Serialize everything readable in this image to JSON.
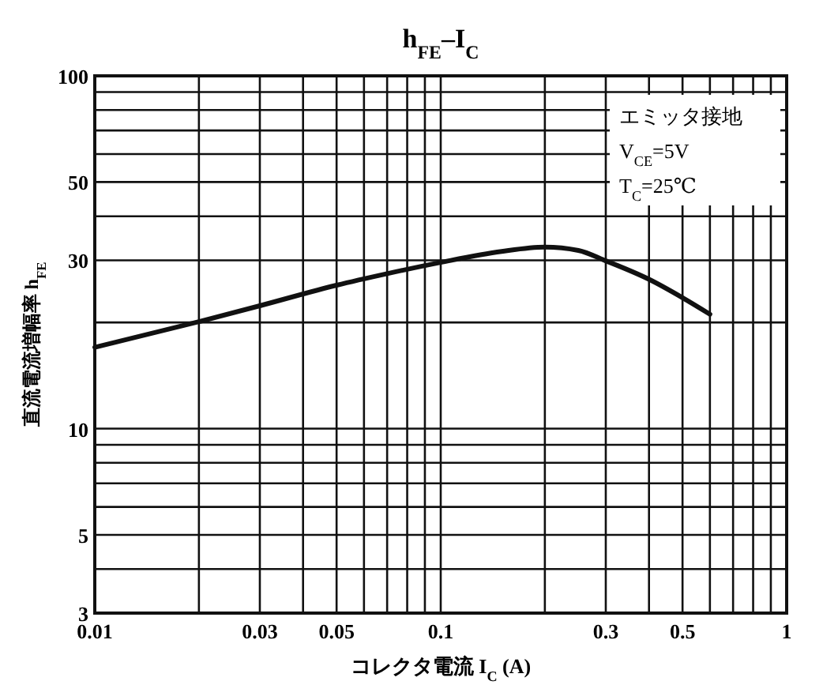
{
  "chart_data": {
    "type": "line",
    "title": "h$_{FE}$–I$_{C}$",
    "xlabel": "コレクタ電流 I$_{C}$ (A)",
    "ylabel": "直流電流増幅率 h$_{FE}$",
    "annotations": [
      "エミッタ接地",
      "V$_{CE}$=5V",
      "T$_{C}$=25℃"
    ],
    "log": "xy",
    "grid": true,
    "line_style": "solid",
    "marker": "none",
    "xlim": [
      0.01,
      1
    ],
    "ylim": [
      3,
      100
    ],
    "xticks": [
      0.01,
      {
        "value": 0.02,
        "label": null
      },
      0.03,
      {
        "value": 0.04,
        "label": null
      },
      0.05,
      {
        "value": 0.06,
        "label": null
      },
      {
        "value": 0.07,
        "label": null
      },
      {
        "value": 0.08,
        "label": null
      },
      {
        "value": 0.09,
        "label": null
      },
      0.1,
      {
        "value": 0.2,
        "label": null
      },
      0.3,
      {
        "value": 0.4,
        "label": null
      },
      0.5,
      {
        "value": 0.6,
        "label": null
      },
      {
        "value": 0.7,
        "label": null
      },
      {
        "value": 0.8,
        "label": null
      },
      {
        "value": 0.9,
        "label": null
      },
      1
    ],
    "yticks": [
      3,
      {
        "value": 4,
        "label": null
      },
      5,
      {
        "value": 6,
        "label": null
      },
      {
        "value": 7,
        "label": null
      },
      {
        "value": 8,
        "label": null
      },
      {
        "value": 9,
        "label": null
      },
      10,
      {
        "value": 20,
        "label": null
      },
      30,
      {
        "value": 40,
        "label": null
      },
      50,
      {
        "value": 60,
        "label": null
      },
      {
        "value": 70,
        "label": null
      },
      {
        "value": 80,
        "label": null
      },
      {
        "value": 90,
        "label": null
      },
      100
    ],
    "series": [
      {
        "color": "#111111",
        "x": [
          0.01,
          0.02,
          0.03,
          0.05,
          0.07,
          0.1,
          0.15,
          0.2,
          0.25,
          0.3,
          0.4,
          0.5,
          0.6
        ],
        "values": [
          17,
          20.1,
          22.3,
          25.5,
          27.5,
          29.6,
          31.8,
          32.7,
          32,
          29.9,
          26.5,
          23.5,
          21.1
        ]
      }
    ]
  }
}
